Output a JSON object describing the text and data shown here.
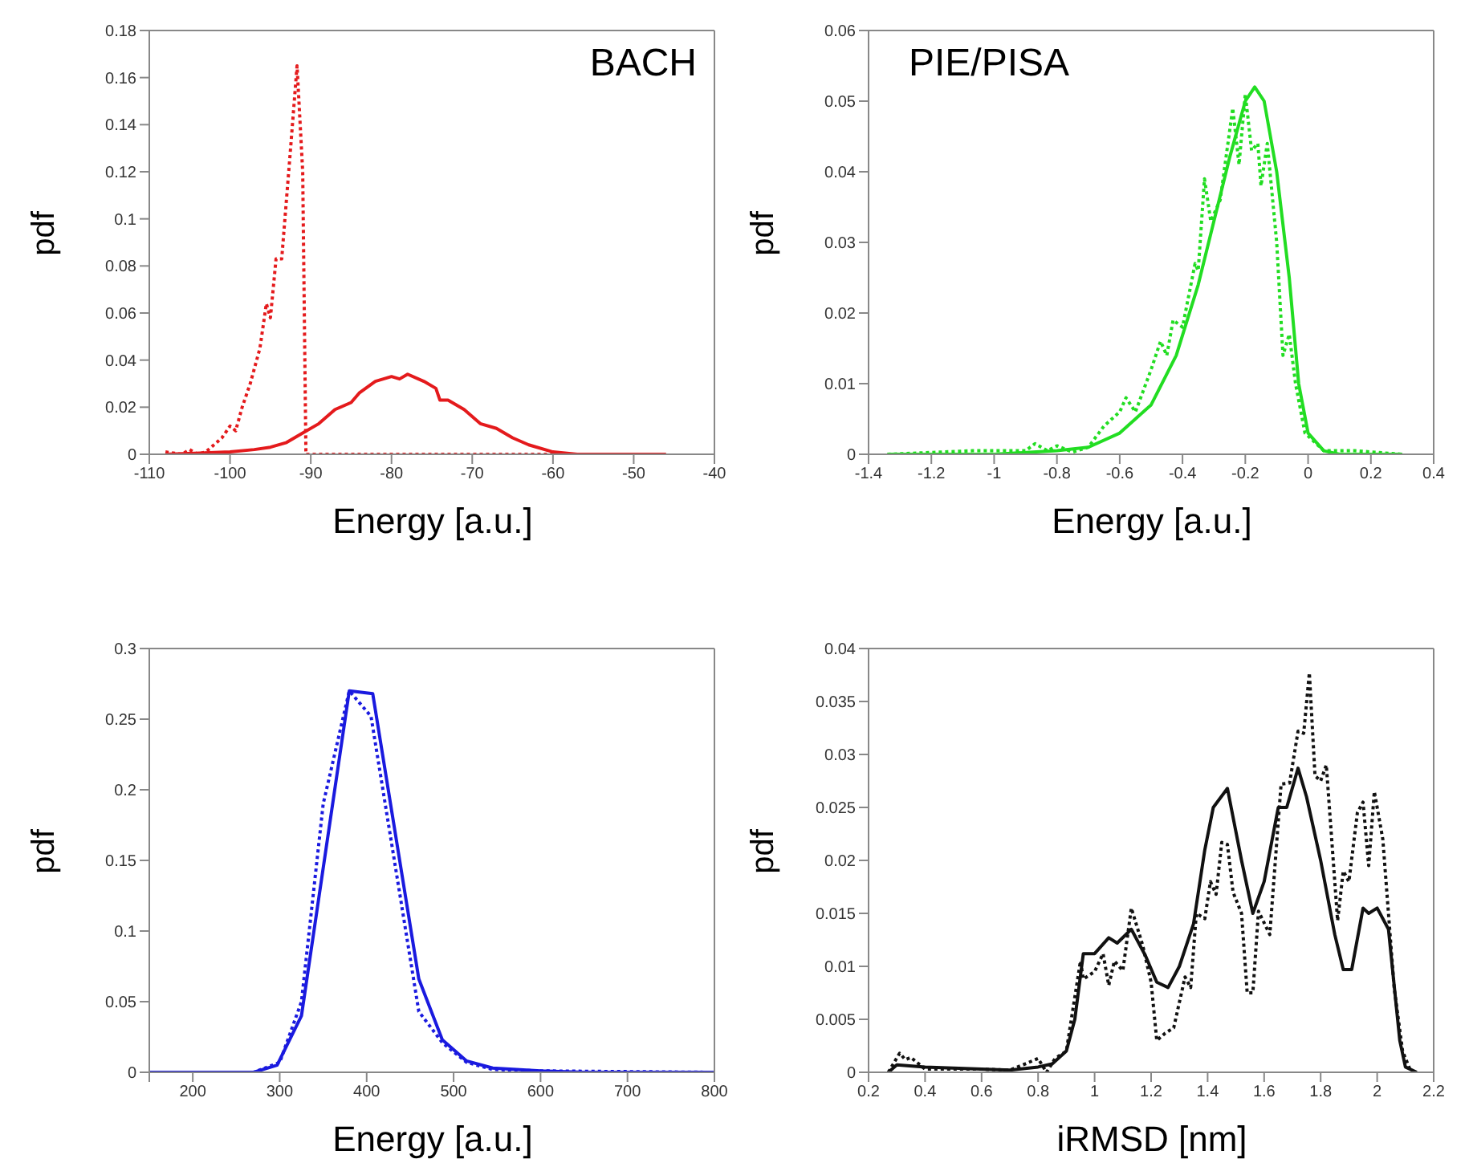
{
  "chart_data": [
    {
      "type": "line",
      "title": "BACH",
      "xlabel": "Energy [a.u.]",
      "ylabel": "pdf",
      "xlim": [
        -110,
        -40
      ],
      "xticks": [
        -110,
        -100,
        -90,
        -80,
        -70,
        -60,
        -50,
        -40
      ],
      "ylim": [
        0,
        0.18
      ],
      "yticks": [
        0,
        0.02,
        0.04,
        0.06,
        0.08,
        0.1,
        0.12,
        0.14,
        0.16,
        0.18
      ],
      "series": [
        {
          "color": "#e41a1c",
          "line_style": "dotted",
          "x": [
            -108,
            -106,
            -105,
            -104,
            -103,
            -101,
            -100,
            -99.3,
            -98.5,
            -97.5,
            -96.3,
            -95.5,
            -95,
            -94.3,
            -93.6,
            -92.5,
            -91.7,
            -91,
            -90.6,
            -80,
            -60,
            -46
          ],
          "values": [
            0.001,
            0,
            0.002,
            0,
            0.001,
            0.007,
            0.012,
            0.01,
            0.02,
            0.03,
            0.045,
            0.064,
            0.058,
            0.083,
            0.083,
            0.13,
            0.165,
            0.12,
            0,
            0,
            0,
            0
          ]
        },
        {
          "color": "#e41a1c",
          "line_style": "solid",
          "x": [
            -108,
            -100,
            -97,
            -95,
            -93,
            -91,
            -89,
            -87,
            -85,
            -84,
            -82,
            -80,
            -79,
            -78,
            -76,
            -74.5,
            -74,
            -73,
            -71,
            -69,
            -67,
            -65,
            -63,
            -60,
            -57,
            -46
          ],
          "values": [
            0,
            0.001,
            0.002,
            0.003,
            0.005,
            0.009,
            0.013,
            0.019,
            0.022,
            0.026,
            0.031,
            0.033,
            0.032,
            0.034,
            0.031,
            0.028,
            0.023,
            0.023,
            0.019,
            0.013,
            0.011,
            0.007,
            0.004,
            0.001,
            0,
            0
          ]
        }
      ]
    },
    {
      "type": "line",
      "title": "PIE/PISA",
      "xlabel": "Energy [a.u.]",
      "ylabel": "pdf",
      "xlim": [
        -1.4,
        0.4
      ],
      "xticks": [
        -1.4,
        -1.2,
        -1,
        -0.8,
        -0.6,
        -0.4,
        -0.2,
        0,
        0.2,
        0.4
      ],
      "ylim": [
        0,
        0.06
      ],
      "yticks": [
        0,
        0.01,
        0.02,
        0.03,
        0.04,
        0.05,
        0.06
      ],
      "series": [
        {
          "color": "#22dd22",
          "line_style": "solid",
          "x": [
            -1.34,
            -1,
            -0.8,
            -0.7,
            -0.6,
            -0.5,
            -0.42,
            -0.35,
            -0.3,
            -0.25,
            -0.2,
            -0.17,
            -0.14,
            -0.1,
            -0.06,
            -0.03,
            0,
            0.05,
            0.1,
            0.3
          ],
          "values": [
            0,
            0,
            0.0005,
            0.001,
            0.003,
            0.007,
            0.014,
            0.024,
            0.033,
            0.042,
            0.05,
            0.052,
            0.05,
            0.04,
            0.025,
            0.01,
            0.003,
            0.0005,
            0,
            0
          ]
        },
        {
          "color": "#22dd22",
          "line_style": "dotted",
          "x": [
            -1.34,
            -1.07,
            -0.9,
            -0.87,
            -0.83,
            -0.8,
            -0.75,
            -0.7,
            -0.65,
            -0.6,
            -0.58,
            -0.55,
            -0.5,
            -0.47,
            -0.45,
            -0.43,
            -0.4,
            -0.36,
            -0.35,
            -0.33,
            -0.31,
            -0.28,
            -0.24,
            -0.22,
            -0.2,
            -0.18,
            -0.16,
            -0.15,
            -0.13,
            -0.1,
            -0.08,
            -0.06,
            -0.04,
            -0.01,
            0.05,
            0.15,
            0.3
          ],
          "values": [
            0,
            0.0005,
            0.0005,
            0.0015,
            0.0005,
            0.0012,
            0.0003,
            0.001,
            0.004,
            0.006,
            0.008,
            0.006,
            0.012,
            0.016,
            0.014,
            0.019,
            0.018,
            0.027,
            0.026,
            0.039,
            0.033,
            0.036,
            0.049,
            0.041,
            0.051,
            0.043,
            0.044,
            0.038,
            0.044,
            0.03,
            0.014,
            0.017,
            0.01,
            0.003,
            0.0005,
            0.0005,
            0
          ]
        }
      ]
    },
    {
      "type": "line",
      "xlabel": "Energy [a.u.]",
      "ylabel": "pdf",
      "xlim": [
        150,
        800
      ],
      "xticks": [
        {
          "value": 150,
          "label": null
        },
        200,
        300,
        400,
        500,
        600,
        700,
        800
      ],
      "ylim": [
        0,
        0.3
      ],
      "yticks": [
        0,
        0.05,
        0.1,
        0.15,
        0.2,
        0.25,
        0.3
      ],
      "series": [
        {
          "color": "#1a1adf",
          "line_style": "solid",
          "x": [
            150,
            270,
            297,
            325,
            380,
            407,
            460,
            487,
            515,
            545,
            600,
            650,
            800
          ],
          "values": [
            0,
            0,
            0.005,
            0.04,
            0.27,
            0.268,
            0.066,
            0.023,
            0.008,
            0.003,
            0.001,
            0,
            0
          ]
        },
        {
          "color": "#1a1adf",
          "line_style": "dotted",
          "x": [
            150,
            270,
            300,
            325,
            350,
            380,
            405,
            460,
            487,
            515,
            545,
            600,
            800
          ],
          "values": [
            0,
            0,
            0.007,
            0.05,
            0.19,
            0.27,
            0.252,
            0.043,
            0.021,
            0.007,
            0.002,
            0.001,
            0
          ]
        }
      ]
    },
    {
      "type": "line",
      "xlabel": "iRMSD [nm]",
      "ylabel": "pdf",
      "xlim": [
        0.2,
        2.2
      ],
      "xticks": [
        0.2,
        0.4,
        0.6,
        0.8,
        1,
        1.2,
        1.4,
        1.6,
        1.8,
        2,
        2.2
      ],
      "ylim": [
        0,
        0.04
      ],
      "yticks": [
        0,
        0.005,
        0.01,
        0.015,
        0.02,
        0.025,
        0.03,
        0.035,
        0.04
      ],
      "series": [
        {
          "color": "#111111",
          "line_style": "solid",
          "x": [
            0.27,
            0.3,
            0.4,
            0.5,
            0.6,
            0.7,
            0.8,
            0.85,
            0.9,
            0.93,
            0.96,
            1.0,
            1.05,
            1.08,
            1.13,
            1.18,
            1.22,
            1.26,
            1.3,
            1.35,
            1.39,
            1.42,
            1.47,
            1.52,
            1.56,
            1.6,
            1.65,
            1.68,
            1.72,
            1.75,
            1.8,
            1.85,
            1.88,
            1.91,
            1.95,
            1.97,
            2.0,
            2.04,
            2.08,
            2.1,
            2.14
          ],
          "values": [
            0,
            0.0007,
            0.0005,
            0.0004,
            0.0003,
            0.0002,
            0.0005,
            0.0008,
            0.002,
            0.005,
            0.0112,
            0.0112,
            0.0127,
            0.0122,
            0.0135,
            0.011,
            0.0085,
            0.008,
            0.01,
            0.014,
            0.021,
            0.025,
            0.0268,
            0.02,
            0.015,
            0.018,
            0.025,
            0.025,
            0.0287,
            0.026,
            0.02,
            0.013,
            0.0097,
            0.0097,
            0.0155,
            0.015,
            0.0155,
            0.0135,
            0.003,
            0.0005,
            0
          ]
        },
        {
          "color": "#111111",
          "line_style": "dotted",
          "x": [
            0.27,
            0.31,
            0.33,
            0.35,
            0.4,
            0.5,
            0.6,
            0.7,
            0.8,
            0.83,
            0.86,
            0.9,
            0.95,
            0.96,
            1.0,
            1.03,
            1.05,
            1.07,
            1.1,
            1.13,
            1.17,
            1.2,
            1.22,
            1.25,
            1.28,
            1.32,
            1.34,
            1.36,
            1.39,
            1.41,
            1.43,
            1.45,
            1.47,
            1.49,
            1.52,
            1.54,
            1.56,
            1.58,
            1.62,
            1.66,
            1.69,
            1.72,
            1.74,
            1.76,
            1.78,
            1.8,
            1.82,
            1.86,
            1.88,
            1.9,
            1.93,
            1.95,
            1.97,
            1.99,
            2.02,
            2.06,
            2.09,
            2.12,
            2.14
          ],
          "values": [
            0,
            0.0018,
            0.0012,
            0.0014,
            0.0003,
            0.0003,
            0.0003,
            0.0002,
            0.0013,
            0,
            0.0013,
            0.002,
            0.0105,
            0.0088,
            0.0095,
            0.0112,
            0.0082,
            0.0105,
            0.0096,
            0.0155,
            0.012,
            0.0085,
            0.003,
            0.0037,
            0.0042,
            0.009,
            0.008,
            0.015,
            0.0145,
            0.018,
            0.0168,
            0.0217,
            0.0215,
            0.017,
            0.015,
            0.0075,
            0.0075,
            0.0152,
            0.013,
            0.0272,
            0.0273,
            0.0322,
            0.032,
            0.0377,
            0.028,
            0.0275,
            0.029,
            0.0143,
            0.019,
            0.018,
            0.0245,
            0.0255,
            0.0195,
            0.0265,
            0.022,
            0.008,
            0.002,
            0,
            0
          ]
        }
      ]
    }
  ]
}
